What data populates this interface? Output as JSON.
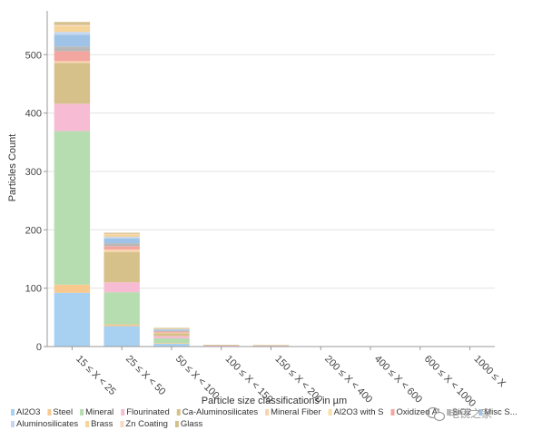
{
  "chart_data": {
    "type": "bar",
    "stacked": true,
    "title": "",
    "xlabel": "Particle size classifications in µm",
    "ylabel": "Particles Count",
    "ylim": [
      0,
      575
    ],
    "yticks": [
      0,
      100,
      200,
      300,
      400,
      500
    ],
    "grid": true,
    "legend_position": "bottom",
    "categories": [
      "15 ≤ X < 25",
      "25 ≤ X < 50",
      "50 ≤ X < 100",
      "100 ≤ X < 150",
      "150 ≤ X < 200",
      "200 ≤ X < 400",
      "400 ≤ X < 600",
      "600 ≤ X < 1000",
      "1000 ≤ X"
    ],
    "series": [
      {
        "name": "Al2O3",
        "color": "#a8d0f0",
        "values": [
          92,
          35,
          5,
          0.5,
          0.5,
          0,
          0,
          0,
          0
        ]
      },
      {
        "name": "Steel",
        "color": "#f7c98f",
        "values": [
          14,
          3,
          1,
          0,
          0,
          0,
          0,
          0,
          0
        ]
      },
      {
        "name": "Mineral",
        "color": "#b5ddb0",
        "values": [
          263,
          55,
          8,
          1,
          1,
          0,
          0,
          0,
          0
        ]
      },
      {
        "name": "Flourinated",
        "color": "#f7bcd3",
        "values": [
          47,
          17,
          4,
          0.5,
          0.5,
          0,
          0,
          0,
          0
        ]
      },
      {
        "name": "Ca-Aluminosilicates",
        "color": "#d7c18a",
        "values": [
          70,
          52,
          5,
          1,
          0.5,
          0,
          0,
          0,
          0
        ]
      },
      {
        "name": "Mineral Fiber",
        "color": "#f8d3ad",
        "values": [
          3,
          3,
          1,
          0,
          0,
          0,
          0,
          0,
          0
        ]
      },
      {
        "name": "Al2O3 with S",
        "color": "#f7e0a8",
        "values": [
          0,
          1,
          0,
          0,
          0,
          0,
          0,
          0,
          0
        ]
      },
      {
        "name": "Oxidized Al",
        "color": "#f3a6a0",
        "values": [
          17,
          6,
          2,
          0,
          0,
          0,
          0,
          0,
          0
        ]
      },
      {
        "name": "SiO2",
        "color": "#b8b8b8",
        "values": [
          8,
          5,
          1,
          0,
          0,
          0,
          0,
          0,
          0
        ]
      },
      {
        "name": "Misc S...",
        "color": "#9fc3e6",
        "values": [
          20,
          8,
          2,
          0,
          0,
          0,
          0,
          0,
          0
        ]
      },
      {
        "name": "Aluminosilicates",
        "color": "#c5d7ee",
        "values": [
          5,
          3,
          1,
          0,
          0,
          0,
          0,
          0,
          0
        ]
      },
      {
        "name": "Brass",
        "color": "#f5d49a",
        "values": [
          10,
          4,
          1,
          0,
          0,
          0,
          0,
          0,
          0
        ]
      },
      {
        "name": "Zn Coating",
        "color": "#f9d9c0",
        "values": [
          2,
          1,
          0,
          0,
          0,
          0,
          0,
          0,
          0
        ]
      },
      {
        "name": "Glass",
        "color": "#d4c08c",
        "values": [
          5,
          2,
          1,
          0,
          0,
          0,
          0,
          0,
          0
        ]
      }
    ]
  },
  "watermark": {
    "text": "电镜之家"
  }
}
